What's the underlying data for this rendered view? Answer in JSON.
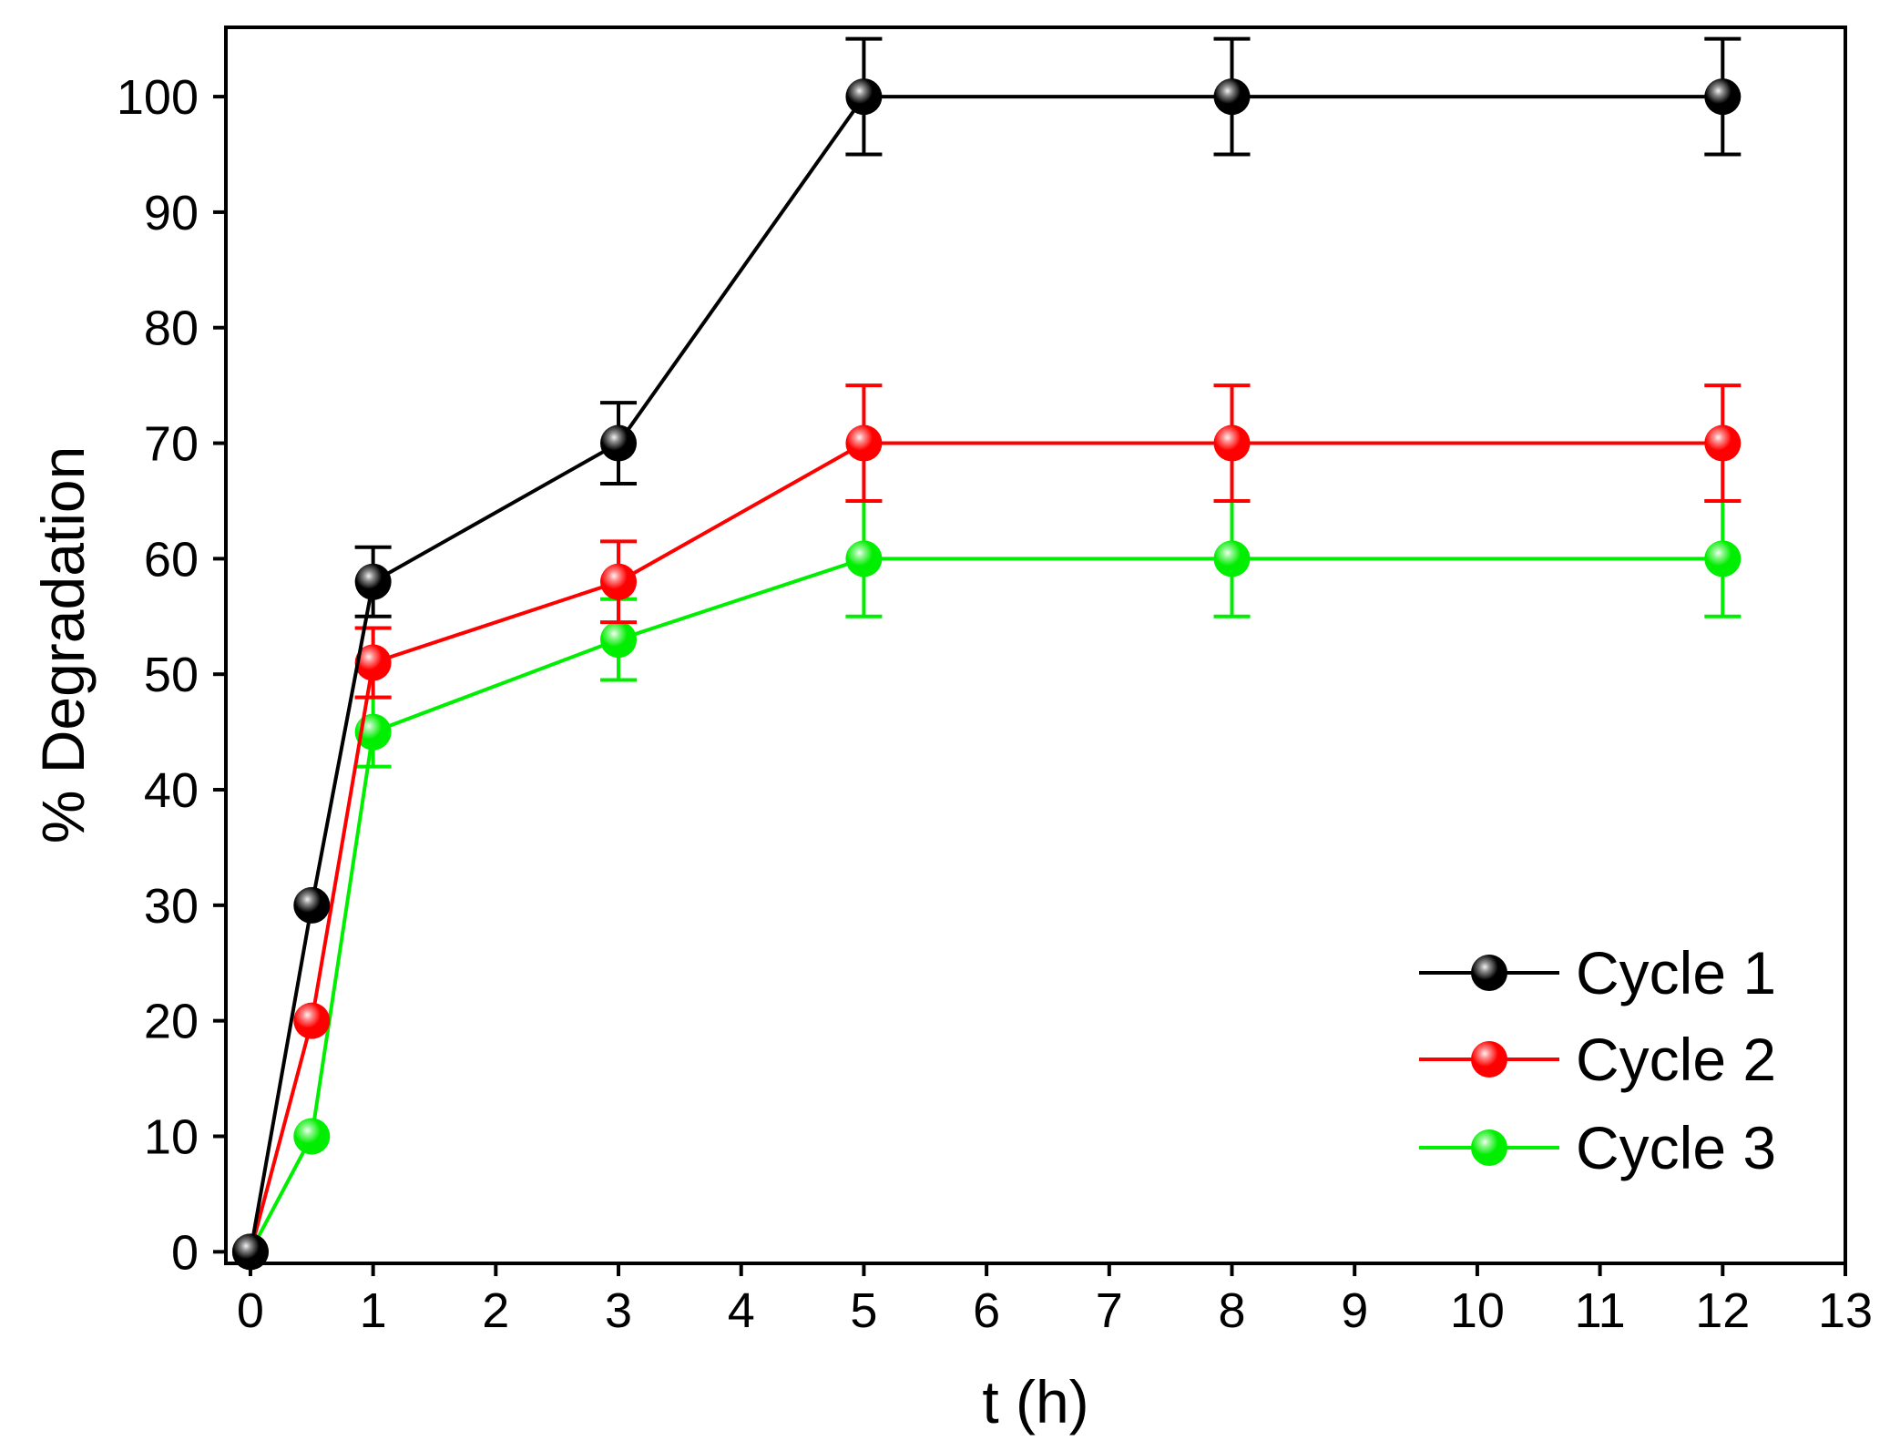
{
  "chart_data": {
    "type": "line",
    "title": "",
    "xlabel": "t (h)",
    "ylabel": "% Degradation",
    "xlim": [
      -0.2,
      13
    ],
    "ylim": [
      -1,
      106
    ],
    "xticks": [
      0,
      1,
      2,
      3,
      4,
      5,
      6,
      7,
      8,
      9,
      10,
      11,
      12,
      13
    ],
    "yticks": [
      0,
      10,
      20,
      30,
      40,
      50,
      60,
      70,
      80,
      90,
      100
    ],
    "grid": false,
    "legend_position": "bottom-right",
    "x": [
      0,
      0.5,
      1,
      3,
      5,
      8,
      12
    ],
    "series": [
      {
        "name": "Cycle 1",
        "color": "#000000",
        "values": [
          0,
          30,
          58,
          70,
          100,
          100,
          100
        ],
        "errors": [
          0,
          0,
          3,
          3.5,
          5,
          5,
          5
        ]
      },
      {
        "name": "Cycle 2",
        "color": "#ff0000",
        "values": [
          0,
          20,
          51,
          58,
          70,
          70,
          70
        ],
        "errors": [
          0,
          0,
          3,
          3.5,
          5,
          5,
          5
        ]
      },
      {
        "name": "Cycle 3",
        "color": "#00ee00",
        "values": [
          0,
          10,
          45,
          53,
          60,
          60,
          60
        ],
        "errors": [
          0,
          0,
          3,
          3.5,
          5,
          5,
          5
        ]
      }
    ]
  }
}
